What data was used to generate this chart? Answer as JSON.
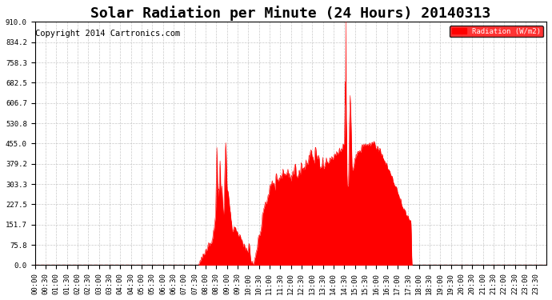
{
  "title": "Solar Radiation per Minute (24 Hours) 20140313",
  "copyright": "Copyright 2014 Cartronics.com",
  "ylabel": "Radiation (W/m2)",
  "background_color": "#ffffff",
  "plot_bg_color": "#ffffff",
  "grid_color": "#bbbbbb",
  "fill_color": "#ff0000",
  "line_color": "#ff0000",
  "dashed_line_color": "#ff0000",
  "legend_bg": "#ff0000",
  "legend_text_color": "#ffffff",
  "yticks": [
    0.0,
    75.8,
    151.7,
    227.5,
    303.3,
    379.2,
    455.0,
    530.8,
    606.7,
    682.5,
    758.3,
    834.2,
    910.0
  ],
  "ylim": [
    0,
    910.0
  ],
  "title_fontsize": 13,
  "tick_fontsize": 6.5,
  "copyright_fontsize": 7.5
}
